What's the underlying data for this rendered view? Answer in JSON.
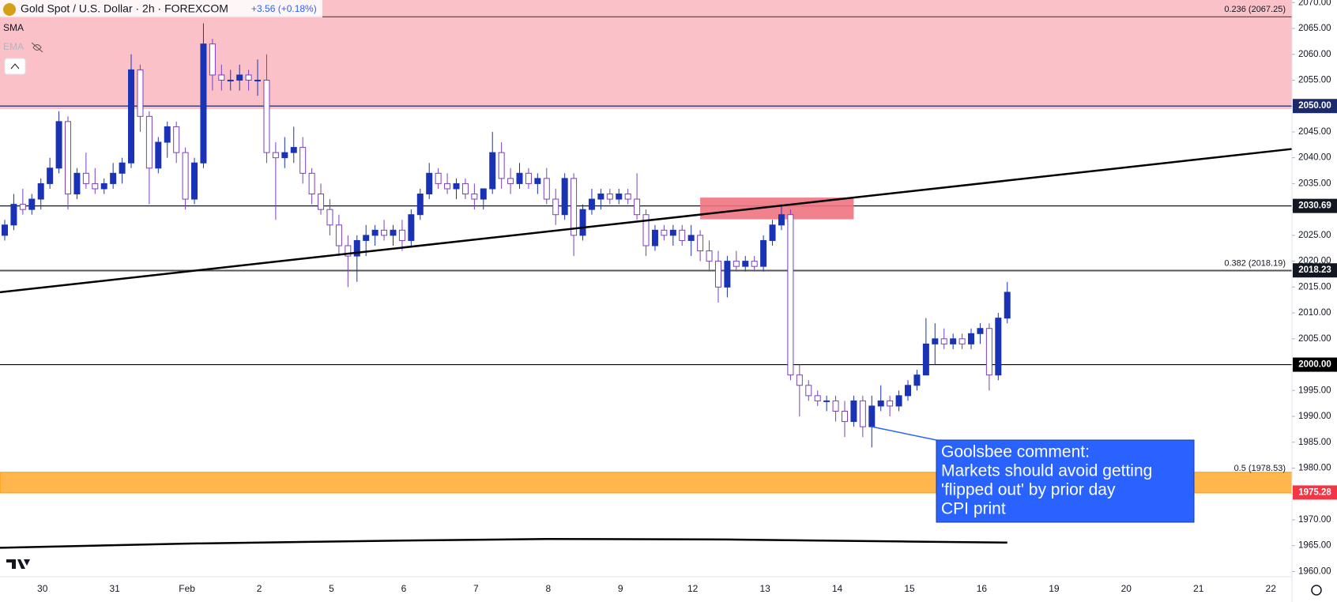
{
  "chart_data": {
    "type": "candlestick",
    "title": "Gold Spot / U.S. Dollar · 2h · FOREXCOM",
    "change": "+3.56 (+0.18%)",
    "indicators": [
      "SMA",
      "EMA"
    ],
    "ylim": [
      1959,
      2070.5
    ],
    "yticks": [
      {
        "value": 1960,
        "label": "1960.00"
      },
      {
        "value": 1965,
        "label": "1965.00"
      },
      {
        "value": 1970,
        "label": "1970.00"
      },
      {
        "value": 1975,
        "label": "1975.00"
      },
      {
        "value": 1980,
        "label": "1980.00"
      },
      {
        "value": 1985,
        "label": "1985.00"
      },
      {
        "value": 1990,
        "label": "1990.00"
      },
      {
        "value": 1995,
        "label": "1995.00"
      },
      {
        "value": 2000,
        "label": "2000.00"
      },
      {
        "value": 2005,
        "label": "2005.00"
      },
      {
        "value": 2010,
        "label": "2010.00"
      },
      {
        "value": 2015,
        "label": "2015.00"
      },
      {
        "value": 2020,
        "label": "2020.00"
      },
      {
        "value": 2025,
        "label": "2025.00"
      },
      {
        "value": 2030,
        "label": "2030.00"
      },
      {
        "value": 2035,
        "label": "2035.00"
      },
      {
        "value": 2040,
        "label": "2040.00"
      },
      {
        "value": 2045,
        "label": "2045.00"
      },
      {
        "value": 2050,
        "label": "2050.00"
      },
      {
        "value": 2055,
        "label": "2055.00"
      },
      {
        "value": 2060,
        "label": "2060.00"
      },
      {
        "value": 2065,
        "label": "2065.00"
      },
      {
        "value": 2070,
        "label": "2070.00"
      }
    ],
    "x_labels": [
      "30",
      "31",
      "Feb",
      "2",
      "5",
      "6",
      "7",
      "8",
      "9",
      "12",
      "13",
      "14",
      "15",
      "16",
      "19",
      "20",
      "21",
      "22"
    ],
    "up_color": "#1a33b5",
    "down_color": "#7b3fbf",
    "ohlc": [
      [
        2025,
        2028,
        2024,
        2027
      ],
      [
        2027,
        2033,
        2026,
        2031
      ],
      [
        2031,
        2034,
        2029,
        2030
      ],
      [
        2030,
        2033,
        2029,
        2032
      ],
      [
        2032,
        2036,
        2030,
        2035
      ],
      [
        2035,
        2040,
        2034,
        2038
      ],
      [
        2038,
        2049,
        2037,
        2047
      ],
      [
        2047,
        2048,
        2030,
        2033
      ],
      [
        2033,
        2038,
        2032,
        2037
      ],
      [
        2037,
        2041,
        2034,
        2035
      ],
      [
        2035,
        2038,
        2033,
        2034
      ],
      [
        2034,
        2036,
        2033,
        2035
      ],
      [
        2035,
        2039,
        2034,
        2037
      ],
      [
        2037,
        2040,
        2035,
        2039
      ],
      [
        2039,
        2060,
        2038,
        2057
      ],
      [
        2057,
        2058,
        2045,
        2048
      ],
      [
        2048,
        2049,
        2031,
        2038
      ],
      [
        2038,
        2044,
        2037,
        2043
      ],
      [
        2043,
        2047,
        2040,
        2046
      ],
      [
        2046,
        2047,
        2039,
        2041
      ],
      [
        2041,
        2042,
        2030,
        2032
      ],
      [
        2032,
        2040,
        2031,
        2039
      ],
      [
        2039,
        2066,
        2038,
        2062
      ],
      [
        2062,
        2063,
        2053,
        2056
      ],
      [
        2056,
        2058,
        2053,
        2055
      ],
      [
        2055,
        2057,
        2053,
        2055
      ],
      [
        2055,
        2058,
        2053,
        2056
      ],
      [
        2056,
        2057,
        2053,
        2055
      ],
      [
        2055,
        2059,
        2052,
        2055
      ],
      [
        2055,
        2060,
        2039,
        2041
      ],
      [
        2041,
        2043,
        2028,
        2040
      ],
      [
        2040,
        2044,
        2038,
        2041
      ],
      [
        2041,
        2046,
        2039,
        2042
      ],
      [
        2042,
        2044,
        2035,
        2037
      ],
      [
        2037,
        2038,
        2031,
        2033
      ],
      [
        2033,
        2035,
        2029,
        2030
      ],
      [
        2030,
        2032,
        2025,
        2027
      ],
      [
        2027,
        2029,
        2021,
        2023
      ],
      [
        2023,
        2025,
        2015,
        2021
      ],
      [
        2021,
        2025,
        2016,
        2024
      ],
      [
        2024,
        2027,
        2021,
        2025
      ],
      [
        2025,
        2027,
        2023,
        2026
      ],
      [
        2026,
        2028,
        2024,
        2025
      ],
      [
        2025,
        2027,
        2023,
        2026
      ],
      [
        2026,
        2028,
        2022,
        2024
      ],
      [
        2024,
        2030,
        2023,
        2029
      ],
      [
        2029,
        2034,
        2028,
        2033
      ],
      [
        2033,
        2039,
        2032,
        2037
      ],
      [
        2037,
        2038,
        2034,
        2035
      ],
      [
        2035,
        2037,
        2033,
        2034
      ],
      [
        2034,
        2036,
        2032,
        2035
      ],
      [
        2035,
        2036,
        2032,
        2033
      ],
      [
        2033,
        2035,
        2030,
        2032
      ],
      [
        2032,
        2034,
        2030,
        2034
      ],
      [
        2034,
        2045,
        2033,
        2041
      ],
      [
        2041,
        2043,
        2034,
        2036
      ],
      [
        2036,
        2038,
        2033,
        2035
      ],
      [
        2035,
        2039,
        2034,
        2037
      ],
      [
        2037,
        2038,
        2034,
        2035
      ],
      [
        2035,
        2037,
        2033,
        2036
      ],
      [
        2036,
        2038,
        2031,
        2032
      ],
      [
        2032,
        2034,
        2027,
        2029
      ],
      [
        2029,
        2037,
        2028,
        2036
      ],
      [
        2036,
        2037,
        2021,
        2025
      ],
      [
        2025,
        2031,
        2024,
        2030
      ],
      [
        2030,
        2034,
        2029,
        2032
      ],
      [
        2032,
        2034,
        2030,
        2033
      ],
      [
        2033,
        2034,
        2031,
        2032
      ],
      [
        2032,
        2034,
        2031,
        2033
      ],
      [
        2033,
        2034,
        2031,
        2032
      ],
      [
        2032,
        2037,
        2028,
        2029
      ],
      [
        2029,
        2030,
        2021,
        2023
      ],
      [
        2023,
        2027,
        2022,
        2026
      ],
      [
        2026,
        2027,
        2024,
        2025
      ],
      [
        2025,
        2027,
        2023,
        2026
      ],
      [
        2026,
        2027,
        2023,
        2024
      ],
      [
        2024,
        2027,
        2021,
        2025
      ],
      [
        2025,
        2026,
        2020,
        2022
      ],
      [
        2022,
        2024,
        2018,
        2020
      ],
      [
        2020,
        2022,
        2012,
        2015
      ],
      [
        2015,
        2021,
        2013,
        2020
      ],
      [
        2020,
        2022,
        2018,
        2019
      ],
      [
        2019,
        2021,
        2018,
        2020
      ],
      [
        2020,
        2021,
        2018,
        2019
      ],
      [
        2019,
        2025,
        2018,
        2024
      ],
      [
        2024,
        2028,
        2023,
        2027
      ],
      [
        2027,
        2031,
        2026,
        2029
      ],
      [
        2029,
        2030,
        1997,
        1998
      ],
      [
        1998,
        2000,
        1990,
        1996
      ],
      [
        1996,
        1997,
        1993,
        1994
      ],
      [
        1994,
        1995,
        1992,
        1993
      ],
      [
        1993,
        1994,
        1991,
        1993
      ],
      [
        1993,
        1994,
        1989,
        1991
      ],
      [
        1991,
        1993,
        1986,
        1989
      ],
      [
        1989,
        1994,
        1988,
        1993
      ],
      [
        1993,
        1994,
        1986,
        1988
      ],
      [
        1988,
        1994,
        1984,
        1992
      ],
      [
        1992,
        1996,
        1991,
        1993
      ],
      [
        1993,
        1994,
        1990,
        1992
      ],
      [
        1992,
        1995,
        1991,
        1994
      ],
      [
        1994,
        1997,
        1993,
        1996
      ],
      [
        1996,
        1999,
        1995,
        1998
      ],
      [
        1998,
        2009,
        1998,
        2004
      ],
      [
        2004,
        2008,
        2000,
        2005
      ],
      [
        2005,
        2007,
        2003,
        2004
      ],
      [
        2004,
        2006,
        2003,
        2005
      ],
      [
        2005,
        2006,
        2003,
        2004
      ],
      [
        2004,
        2007,
        2003,
        2006
      ],
      [
        2006,
        2008,
        2004,
        2007
      ],
      [
        2007,
        2008,
        1995,
        1998
      ],
      [
        1998,
        2010,
        1997,
        2009
      ],
      [
        2009,
        2016,
        2008,
        2014
      ]
    ],
    "resistance_zone": {
      "low": 2049.4,
      "color": "#fbc1c9"
    },
    "support_zone": {
      "low": 1975.2,
      "high": 1979.2,
      "color": "#ffb74d"
    },
    "highlight_box": {
      "start_bar": 77,
      "end_bar": 94,
      "low": 2028.1,
      "high": 2032.3,
      "color": "#f0737f"
    },
    "trendline": {
      "start": 2014.0,
      "end": 2041.7
    },
    "ma": {
      "x": [
        0,
        20,
        40,
        60,
        80,
        100,
        111
      ],
      "values": [
        1964.6,
        1965.4,
        1965.9,
        1966.3,
        1966.2,
        1965.8,
        1965.6
      ]
    },
    "fib_levels": [
      {
        "value": 2067.25,
        "label": "0.236 (2067.25)"
      },
      {
        "value": 2018.19,
        "label": "0.382 (2018.19)"
      },
      {
        "value": 1978.53,
        "label": "0.5 (1978.53)"
      }
    ],
    "price_lines": [
      {
        "value": 2050,
        "label": "2050.00",
        "color": "#1c2a6b"
      },
      {
        "value": 2030.69,
        "label": "2030.69",
        "color": "#131722"
      },
      {
        "value": 2018.23,
        "label": "2018.23",
        "color": "#131722"
      },
      {
        "value": 2000,
        "label": "2000.00",
        "color": "#000000"
      },
      {
        "value": 1975.28,
        "label": "1975.28",
        "color": "#f23645"
      }
    ],
    "annotation": {
      "lines": [
        "Goolsbee comment:",
        "Markets should avoid getting",
        "'flipped out' by prior day",
        "CPI print"
      ],
      "bar": 96,
      "price": 1988
    }
  }
}
